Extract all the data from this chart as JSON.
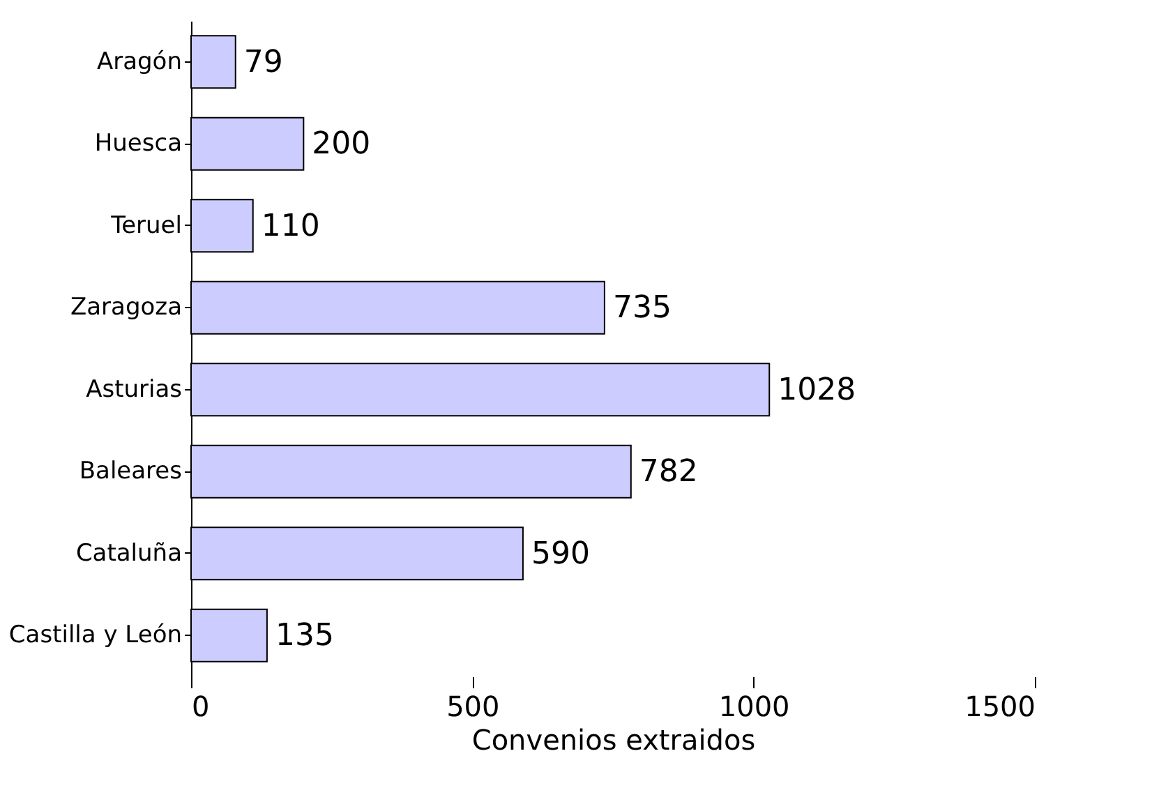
{
  "chart_data": {
    "type": "bar",
    "orientation": "horizontal",
    "xlabel": "Convenios extraidos",
    "categories": [
      "Aragón",
      "Huesca",
      "Teruel",
      "Zaragoza",
      "Asturias",
      "Baleares",
      "Cataluña",
      "Castilla y León"
    ],
    "values": [
      79,
      200,
      110,
      735,
      1028,
      782,
      590,
      135
    ],
    "color": "#ccccff",
    "xlim": [
      0,
      1500
    ],
    "xticks": [
      0,
      500,
      1000,
      1500
    ],
    "data_labels": true
  }
}
